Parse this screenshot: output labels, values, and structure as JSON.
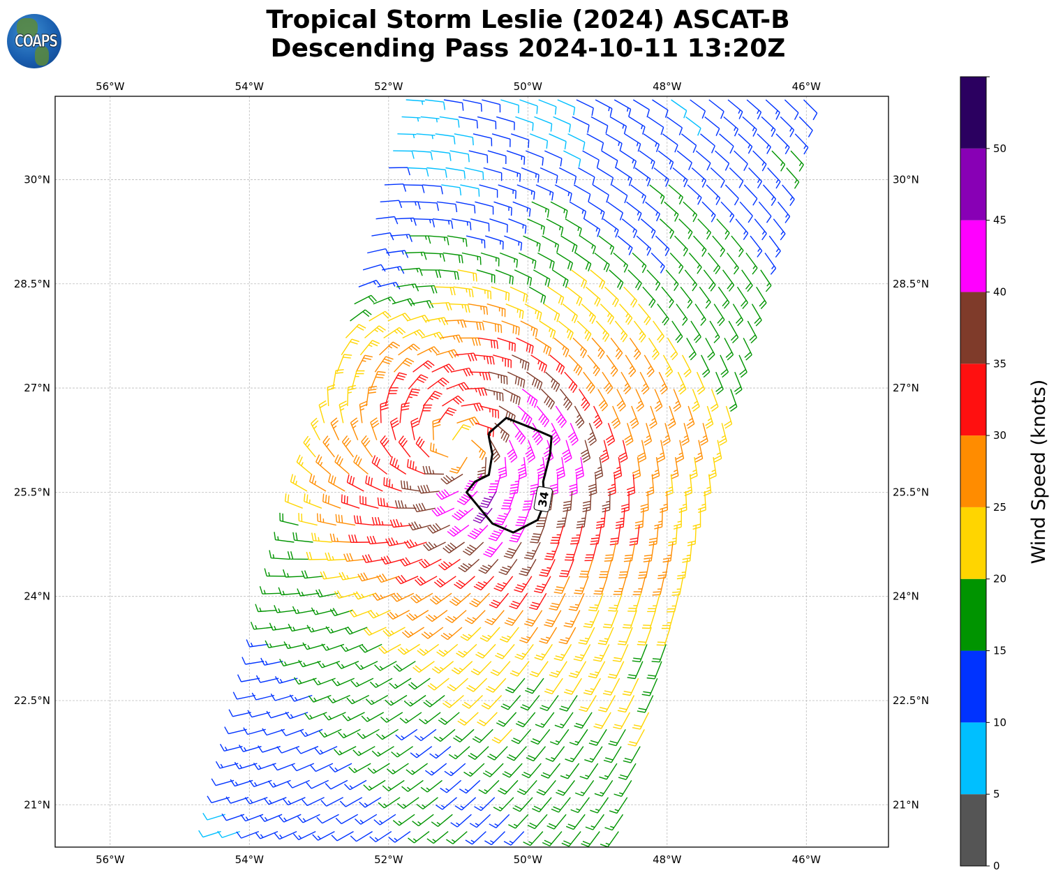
{
  "title": {
    "line1": "Tropical Storm Leslie (2024) ASCAT-B",
    "line2": "Descending Pass 2024-10-11 13:20Z"
  },
  "logo": {
    "text": "COAPS"
  },
  "map": {
    "lon_range": [
      -56.79,
      -44.82
    ],
    "lat_range": [
      20.39,
      31.2
    ],
    "lon_ticks": [
      {
        "value": -56,
        "label": "56°W"
      },
      {
        "value": -54,
        "label": "54°W"
      },
      {
        "value": -52,
        "label": "52°W"
      },
      {
        "value": -50,
        "label": "50°W"
      },
      {
        "value": -48,
        "label": "48°W"
      },
      {
        "value": -46,
        "label": "46°W"
      }
    ],
    "lat_ticks": [
      {
        "value": 30,
        "label": "30°N"
      },
      {
        "value": 28.5,
        "label": "28.5°N"
      },
      {
        "value": 27,
        "label": "27°N"
      },
      {
        "value": 25.5,
        "label": "25.5°N"
      },
      {
        "value": 24,
        "label": "24°N"
      },
      {
        "value": 22.5,
        "label": "22.5°N"
      },
      {
        "value": 21,
        "label": "21°N"
      }
    ],
    "grid": true
  },
  "winds": {
    "storm_center": {
      "lon": -51.0,
      "lat": 26.15
    },
    "swath": {
      "left_top_lon": -51.75,
      "left_bottom_lon": -54.45,
      "top_lat": 31.15,
      "bottom_lat": 20.45,
      "width_deg": 5.95
    },
    "max_wind_kt": 43,
    "units": "knots"
  },
  "contour": {
    "level_label": "34",
    "label_position": {
      "lon": -49.78,
      "lat": 25.4
    },
    "points": [
      [
        -50.56,
        26.35
      ],
      [
        -50.31,
        26.57
      ],
      [
        -49.96,
        26.43
      ],
      [
        -49.66,
        26.3
      ],
      [
        -49.68,
        26.05
      ],
      [
        -49.78,
        25.65
      ],
      [
        -49.76,
        25.35
      ],
      [
        -49.86,
        25.1
      ],
      [
        -50.21,
        24.92
      ],
      [
        -50.51,
        25.05
      ],
      [
        -50.88,
        25.5
      ],
      [
        -50.76,
        25.65
      ],
      [
        -50.56,
        25.75
      ],
      [
        -50.51,
        26.05
      ],
      [
        -50.56,
        26.3
      ],
      [
        -50.56,
        26.35
      ]
    ]
  },
  "colorbar": {
    "label": "Wind Speed (knots)",
    "range": [
      0,
      55
    ],
    "bins": [
      {
        "min": 0,
        "max": 5,
        "color": "#555555"
      },
      {
        "min": 5,
        "max": 10,
        "color": "#00bfff"
      },
      {
        "min": 10,
        "max": 15,
        "color": "#0033ff"
      },
      {
        "min": 15,
        "max": 20,
        "color": "#009400"
      },
      {
        "min": 20,
        "max": 25,
        "color": "#ffd500"
      },
      {
        "min": 25,
        "max": 30,
        "color": "#ff8c00"
      },
      {
        "min": 30,
        "max": 35,
        "color": "#ff1010"
      },
      {
        "min": 35,
        "max": 40,
        "color": "#7f3b2a"
      },
      {
        "min": 40,
        "max": 45,
        "color": "#ff00ff"
      },
      {
        "min": 45,
        "max": 50,
        "color": "#8800b5"
      },
      {
        "min": 50,
        "max": 55,
        "color": "#2b0060"
      }
    ],
    "ticks": [
      {
        "value": 0,
        "label": "0"
      },
      {
        "value": 5,
        "label": "5"
      },
      {
        "value": 10,
        "label": "10"
      },
      {
        "value": 15,
        "label": "15"
      },
      {
        "value": 20,
        "label": "20"
      },
      {
        "value": 25,
        "label": "25"
      },
      {
        "value": 30,
        "label": "30"
      },
      {
        "value": 35,
        "label": "35"
      },
      {
        "value": 40,
        "label": "40"
      },
      {
        "value": 45,
        "label": "45"
      },
      {
        "value": 50,
        "label": "50"
      }
    ]
  }
}
